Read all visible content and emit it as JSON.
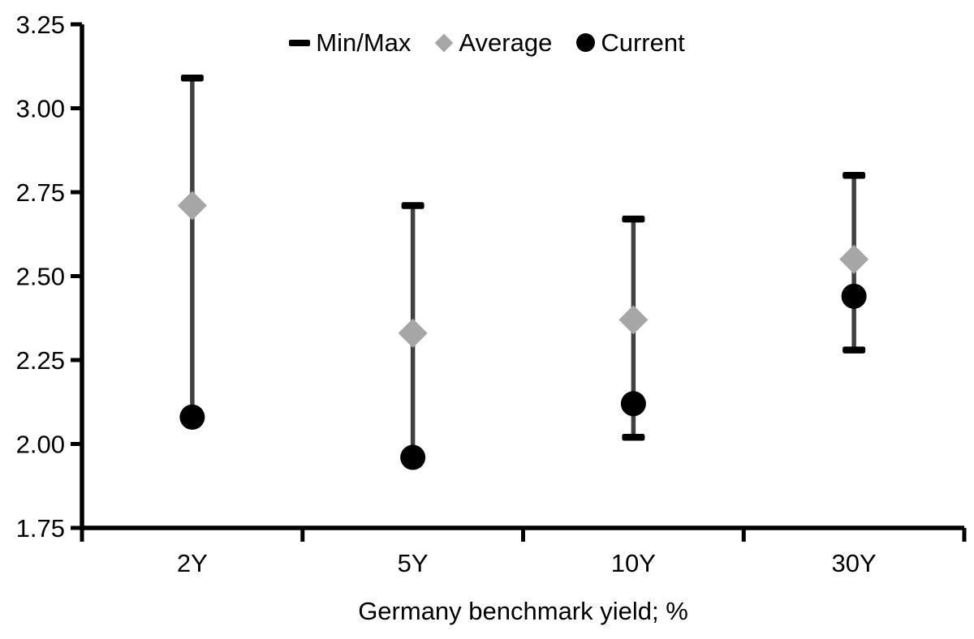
{
  "chart_data": {
    "type": "scatter",
    "subtype": "min-max-range",
    "title": "",
    "xlabel": "Germany benchmark yield; %",
    "ylabel": "",
    "categories": [
      "2Y",
      "5Y",
      "10Y",
      "30Y"
    ],
    "series": [
      {
        "name": "Min/Max",
        "marker": "dash",
        "min": [
          2.08,
          1.96,
          2.02,
          2.28
        ],
        "max": [
          3.09,
          2.71,
          2.67,
          2.8
        ]
      },
      {
        "name": "Average",
        "marker": "diamond",
        "values": [
          2.71,
          2.33,
          2.37,
          2.55
        ]
      },
      {
        "name": "Current",
        "marker": "circle",
        "values": [
          2.08,
          1.96,
          2.12,
          2.44
        ]
      }
    ],
    "ylim": [
      1.75,
      3.25
    ],
    "ytick_step": 0.25,
    "ytick_labels": [
      "3.25",
      "3.00",
      "2.75",
      "2.50",
      "2.25",
      "2.00",
      "1.75"
    ],
    "grid": false,
    "legend_position": "top-center",
    "colors": {
      "minmax_cap": "#000000",
      "range_line": "#404040",
      "average": "#a6a6a6",
      "current": "#000000",
      "axis": "#000000",
      "background": "#ffffff"
    }
  },
  "legend": {
    "items": [
      {
        "label": "Min/Max"
      },
      {
        "label": "Average"
      },
      {
        "label": "Current"
      }
    ]
  }
}
